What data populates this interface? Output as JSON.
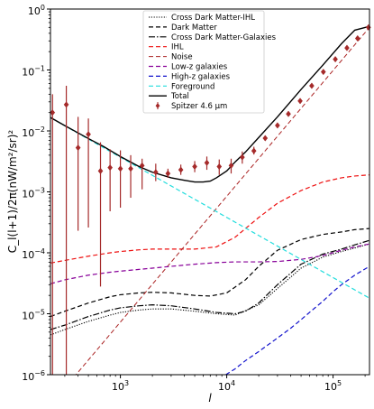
{
  "chart_data": {
    "type": "line",
    "xlabel": "l",
    "ylabel": "C_l(l+1)/2π(nW/m²/sr)²",
    "xscale": "log",
    "yscale": "log",
    "xlim": [
      220,
      220000
    ],
    "ylim": [
      1e-06,
      1
    ],
    "xticks": [
      {
        "value": 1000,
        "base": "10",
        "exp": "3"
      },
      {
        "value": 10000,
        "base": "10",
        "exp": "4"
      },
      {
        "value": 100000,
        "base": "10",
        "exp": "5"
      }
    ],
    "yticks": [
      {
        "value": 1e-06,
        "base": "10",
        "exp": "−6"
      },
      {
        "value": 1e-05,
        "base": "10",
        "exp": "−5"
      },
      {
        "value": 0.0001,
        "base": "10",
        "exp": "−4"
      },
      {
        "value": 0.001,
        "base": "10",
        "exp": "−3"
      },
      {
        "value": 0.01,
        "base": "10",
        "exp": "−2"
      },
      {
        "value": 0.1,
        "base": "10",
        "exp": "−1"
      },
      {
        "value": 1,
        "base": "10",
        "exp": "0"
      }
    ],
    "grid": false,
    "legend_position": "top-center",
    "series": [
      {
        "name": "Cross Dark Matter-IHL",
        "color": "#000000",
        "dash": "1.2,1.6",
        "width": 1.1,
        "x": [
          220,
          300,
          500,
          800,
          1000,
          1500,
          2000,
          3000,
          5000,
          8000,
          12000,
          20000,
          30000,
          50000,
          80000,
          120000,
          160000,
          220000
        ],
        "y": [
          4.5e-06,
          5.5e-06,
          7.5e-06,
          9.5e-06,
          1.05e-05,
          1.15e-05,
          1.2e-05,
          1.2e-05,
          1.1e-05,
          1e-05,
          9.5e-06,
          1.4e-05,
          2.6e-05,
          5.6e-05,
          8.5e-05,
          0.000105,
          0.00012,
          0.00014
        ]
      },
      {
        "name": "Dark Matter",
        "color": "#000000",
        "dash": "5,3",
        "width": 1.2,
        "x": [
          220,
          300,
          500,
          800,
          1000,
          1500,
          2000,
          3000,
          5000,
          7000,
          10000,
          15000,
          20000,
          30000,
          50000,
          80000,
          120000,
          160000,
          220000
        ],
        "y": [
          9e-06,
          1.1e-05,
          1.5e-05,
          1.9e-05,
          2.05e-05,
          2.2e-05,
          2.25e-05,
          2.2e-05,
          2e-05,
          1.95e-05,
          2.2e-05,
          3.6e-05,
          6e-05,
          0.00011,
          0.000165,
          0.0002,
          0.00022,
          0.00024,
          0.00025
        ]
      },
      {
        "name": "Cross Dark Matter-Galaxies",
        "color": "#000000",
        "dash": "7,2,1.5,2",
        "width": 1.2,
        "x": [
          220,
          300,
          500,
          800,
          1000,
          1500,
          2000,
          3000,
          5000,
          8000,
          12000,
          15000,
          20000,
          30000,
          50000,
          80000,
          120000,
          160000,
          220000
        ],
        "y": [
          5.5e-06,
          6.5e-06,
          9e-06,
          1.15e-05,
          1.25e-05,
          1.35e-05,
          1.4e-05,
          1.35e-05,
          1.2e-05,
          1.05e-05,
          1e-05,
          1.1e-05,
          1.5e-05,
          3e-05,
          6.5e-05,
          9.5e-05,
          0.000115,
          0.000135,
          0.00016
        ]
      },
      {
        "name": "IHL",
        "color": "#ee1111",
        "dash": "5,3",
        "width": 1.2,
        "x": [
          220,
          300,
          500,
          800,
          1000,
          1500,
          2000,
          3000,
          5000,
          8000,
          12000,
          15000,
          20000,
          30000,
          50000,
          80000,
          120000,
          160000,
          220000
        ],
        "y": [
          6.8e-05,
          7.5e-05,
          8.8e-05,
          0.0001,
          0.000105,
          0.000112,
          0.000115,
          0.000115,
          0.000115,
          0.000125,
          0.00018,
          0.00025,
          0.00038,
          0.00065,
          0.00105,
          0.00145,
          0.0017,
          0.00182,
          0.0019
        ]
      },
      {
        "name": "Noise",
        "color": "#aa2222",
        "dash": "5,3",
        "width": 1.0,
        "x": [
          220,
          220000
        ],
        "y": [
          3.2e-07,
          0.5
        ]
      },
      {
        "name": "Low-z galaxies",
        "color": "#880099",
        "dash": "5,3",
        "width": 1.2,
        "x": [
          220,
          300,
          500,
          800,
          1000,
          2000,
          3000,
          5000,
          8000,
          12000,
          20000,
          30000,
          50000,
          80000,
          120000,
          160000,
          220000
        ],
        "y": [
          3.1e-05,
          3.6e-05,
          4.3e-05,
          4.8e-05,
          5e-05,
          5.6e-05,
          6e-05,
          6.5e-05,
          6.9e-05,
          7.1e-05,
          7.1e-05,
          7.2e-05,
          7.8e-05,
          9e-05,
          0.00011,
          0.000125,
          0.00014
        ]
      },
      {
        "name": "High-z galaxies",
        "color": "#1111cc",
        "dash": "5,3",
        "width": 1.2,
        "x": [
          9800,
          12000,
          15000,
          20000,
          30000,
          40000,
          50000,
          60000,
          80000,
          100000,
          120000,
          160000,
          220000
        ],
        "y": [
          1e-06,
          1.25e-06,
          1.7e-06,
          2.4e-06,
          4e-06,
          5.8e-06,
          8e-06,
          1.05e-05,
          1.6e-05,
          2.3e-05,
          3e-05,
          4.3e-05,
          6e-05
        ]
      },
      {
        "name": "Foreground",
        "color": "#22dddd",
        "dash": "5,3",
        "width": 1.2,
        "x": [
          220,
          220000
        ],
        "y": [
          0.0165,
          1.8e-05
        ]
      },
      {
        "name": "Total",
        "color": "#000000",
        "dash": "",
        "width": 1.4,
        "x": [
          220,
          300,
          500,
          700,
          1000,
          1500,
          2000,
          3000,
          4000,
          5000,
          6000,
          7000,
          8000,
          10000,
          12000,
          15000,
          20000,
          30000,
          50000,
          80000,
          120000,
          160000,
          220000
        ],
        "y": [
          0.0166,
          0.0122,
          0.0075,
          0.0055,
          0.0038,
          0.0026,
          0.0021,
          0.0017,
          0.00155,
          0.00145,
          0.00145,
          0.0015,
          0.0017,
          0.0022,
          0.0031,
          0.0045,
          0.0078,
          0.017,
          0.048,
          0.12,
          0.27,
          0.45,
          0.52
        ]
      }
    ],
    "errorbars": {
      "name": "Spitzer 4.6 μm",
      "color": "#a52a2a",
      "points": [
        {
          "x": 230,
          "y": 0.02,
          "lo": 1e-06,
          "hi": 0.04
        },
        {
          "x": 310,
          "y": 0.027,
          "lo": 1e-06,
          "hi": 0.055
        },
        {
          "x": 400,
          "y": 0.0053,
          "lo": 0.00023,
          "hi": 0.017
        },
        {
          "x": 500,
          "y": 0.0088,
          "lo": 0.00026,
          "hi": 0.016
        },
        {
          "x": 650,
          "y": 0.0022,
          "lo": 2.8e-05,
          "hi": 0.0065
        },
        {
          "x": 800,
          "y": 0.0025,
          "lo": 0.00048,
          "hi": 0.005
        },
        {
          "x": 1000,
          "y": 0.0024,
          "lo": 0.00055,
          "hi": 0.0048
        },
        {
          "x": 1250,
          "y": 0.0024,
          "lo": 0.0008,
          "hi": 0.004
        },
        {
          "x": 1600,
          "y": 0.0027,
          "lo": 0.0011,
          "hi": 0.0035
        },
        {
          "x": 2150,
          "y": 0.0021,
          "lo": 0.0015,
          "hi": 0.0029
        },
        {
          "x": 2800,
          "y": 0.002,
          "lo": 0.0017,
          "hi": 0.0024
        },
        {
          "x": 3700,
          "y": 0.0023,
          "lo": 0.0019,
          "hi": 0.0028
        },
        {
          "x": 5000,
          "y": 0.0026,
          "lo": 0.0021,
          "hi": 0.0032
        },
        {
          "x": 6500,
          "y": 0.003,
          "lo": 0.0023,
          "hi": 0.0038
        },
        {
          "x": 8500,
          "y": 0.0026,
          "lo": 0.0019,
          "hi": 0.0034
        },
        {
          "x": 11000,
          "y": 0.0027,
          "lo": 0.002,
          "hi": 0.0035
        },
        {
          "x": 14000,
          "y": 0.0037,
          "lo": 0.0029,
          "hi": 0.0046
        },
        {
          "x": 18000,
          "y": 0.0047,
          "lo": 0.0041,
          "hi": 0.0055
        },
        {
          "x": 23000,
          "y": 0.0076,
          "lo": 0.007,
          "hi": 0.0082
        },
        {
          "x": 30000,
          "y": 0.0123,
          "lo": 0.0117,
          "hi": 0.0129
        },
        {
          "x": 38000,
          "y": 0.019,
          "lo": 0.0184,
          "hi": 0.0196
        },
        {
          "x": 49000,
          "y": 0.031,
          "lo": 0.0303,
          "hi": 0.0317
        },
        {
          "x": 63000,
          "y": 0.055,
          "lo": 0.054,
          "hi": 0.056
        },
        {
          "x": 81000,
          "y": 0.093,
          "lo": 0.092,
          "hi": 0.094
        },
        {
          "x": 105000,
          "y": 0.15,
          "lo": 0.149,
          "hi": 0.151
        },
        {
          "x": 135000,
          "y": 0.23,
          "lo": 0.229,
          "hi": 0.231
        },
        {
          "x": 170000,
          "y": 0.33,
          "lo": 0.329,
          "hi": 0.331
        },
        {
          "x": 215000,
          "y": 0.5,
          "lo": 0.499,
          "hi": 0.501
        }
      ]
    }
  }
}
